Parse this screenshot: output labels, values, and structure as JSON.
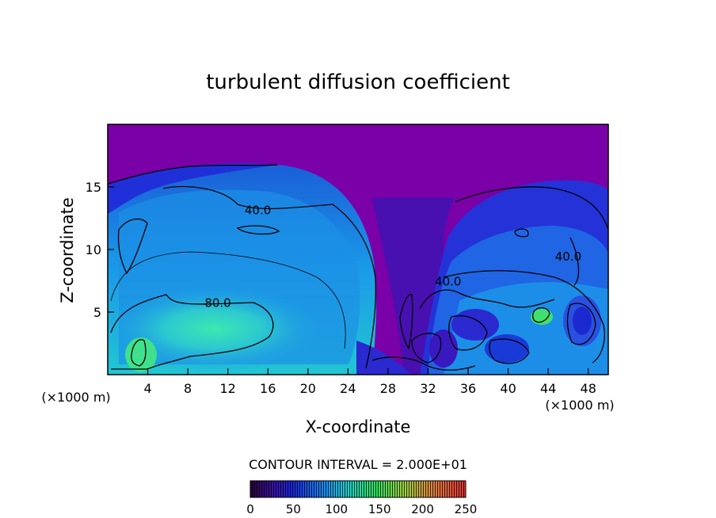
{
  "chart_data": {
    "type": "heatmap",
    "title": "turbulent diffusion coefficient",
    "xlabel": "X-coordinate",
    "ylabel": "Z-coordinate",
    "x_unit_left": "(×1000 m)",
    "x_unit_right": "(×1000 m)",
    "xlim": [
      0,
      50
    ],
    "ylim": [
      0,
      20
    ],
    "x_ticks": [
      4,
      8,
      12,
      16,
      20,
      24,
      28,
      32,
      36,
      40,
      44,
      48
    ],
    "y_ticks": [
      5,
      10,
      15
    ],
    "contour_interval_label": "CONTOUR INTERVAL = 2.000E+01",
    "contour_interval": 20,
    "contour_labels": [
      {
        "text": "40.0",
        "x": 15,
        "z": 13.2
      },
      {
        "text": "80.0",
        "x": 11,
        "z": 5.8
      },
      {
        "text": "40.0",
        "x": 34,
        "z": 7.5
      },
      {
        "text": "40.0",
        "x": 46,
        "z": 9.5
      }
    ],
    "colorbar": {
      "min": 0,
      "max": 250,
      "tick_labels": [
        "0",
        "50",
        "100",
        "150",
        "200",
        "250"
      ],
      "tick_values": [
        0,
        50,
        100,
        150,
        200,
        250
      ]
    },
    "colors": {
      "background_field": "#7a00a8",
      "low": "#2818c8",
      "mid": "#1e7ee6",
      "high": "#2ee0c0",
      "peak": "#40e060"
    }
  }
}
